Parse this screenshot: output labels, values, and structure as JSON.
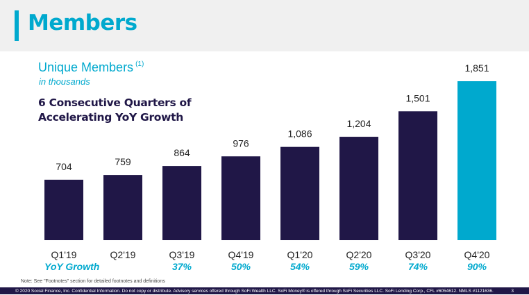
{
  "header": {
    "title": "Members"
  },
  "subtitle": {
    "text": "Unique Members",
    "footnote_ref": "(1)",
    "units": "in thousands"
  },
  "headline": {
    "line1": "6 Consecutive Quarters of",
    "line2": "Accelerating YoY Growth"
  },
  "colors": {
    "accent": "#00a9ce",
    "bar": "#201747",
    "highlight_bar": "#00a9ce",
    "navy": "#201747"
  },
  "chart_data": {
    "type": "bar",
    "title": "Unique Members",
    "ylabel": "in thousands",
    "xlabel": "",
    "categories": [
      "Q1'19",
      "Q2'19",
      "Q3'19",
      "Q4'19",
      "Q1'20",
      "Q2'20",
      "Q3'20",
      "Q4'20"
    ],
    "values": [
      704,
      759,
      864,
      976,
      1086,
      1204,
      1501,
      1851
    ],
    "value_labels": [
      "704",
      "759",
      "864",
      "976",
      "1,086",
      "1,204",
      "1,501",
      "1,851"
    ],
    "highlight_index": 7,
    "grid": false,
    "growth": {
      "label": "YoY Growth",
      "values": [
        "",
        "",
        "37%",
        "50%",
        "54%",
        "59%",
        "74%",
        "90%"
      ]
    }
  },
  "note": "Note: See \"Footnotes\" section for detailed footnotes and definitions",
  "footer": {
    "legal": "© 2020 Social Finance, Inc. Confidential Information. Do not copy or distribute. Advisory services offered through SoFi Wealth LLC. SoFi Money® is offered through SoFi Securities LLC. SoFi Lending Corp., CFL #6054612. NMLS #1121636.",
    "page": "3"
  }
}
